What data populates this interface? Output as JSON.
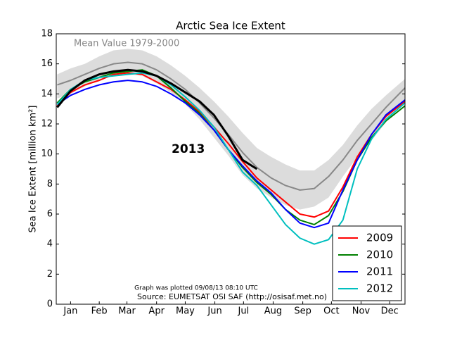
{
  "chart_data": {
    "type": "line",
    "title": "Arctic Sea Ice Extent",
    "y_label": "Sea Ice Extent [million km²]",
    "annotation_mean": "Mean Value 1979-2000",
    "footnote": "Graph was plotted 09/08/13 08:10 UTC",
    "source": "Source: EUMETSAT OSI SAF (http://osisaf.met.no)",
    "xlim": [
      0,
      365
    ],
    "xticks": [
      {
        "value": 15,
        "label": "Jan"
      },
      {
        "value": 45,
        "label": "Feb"
      },
      {
        "value": 74,
        "label": "Mar"
      },
      {
        "value": 105,
        "label": "Apr"
      },
      {
        "value": 135,
        "label": "May"
      },
      {
        "value": 166,
        "label": "Jun"
      },
      {
        "value": 196,
        "label": "Jul"
      },
      {
        "value": 227,
        "label": "Aug"
      },
      {
        "value": 258,
        "label": "Sep"
      },
      {
        "value": 288,
        "label": "Oct"
      },
      {
        "value": 319,
        "label": "Nov"
      },
      {
        "value": 349,
        "label": "Dec"
      }
    ],
    "ylim": [
      0,
      18
    ],
    "yticks": [
      0,
      2,
      4,
      6,
      8,
      10,
      12,
      14,
      16,
      18
    ],
    "legend": "lower right",
    "x": [
      1,
      15,
      30,
      45,
      60,
      75,
      90,
      105,
      120,
      135,
      150,
      165,
      180,
      195,
      210,
      225,
      240,
      255,
      270,
      285,
      300,
      315,
      330,
      345,
      365
    ],
    "range": {
      "color": "#dcdcdc",
      "high": [
        15.3,
        15.7,
        16.0,
        16.5,
        16.9,
        17.0,
        16.9,
        16.5,
        15.9,
        15.2,
        14.4,
        13.5,
        12.5,
        11.4,
        10.4,
        9.8,
        9.3,
        8.9,
        8.9,
        9.6,
        10.6,
        11.9,
        13.0,
        13.9,
        15.0
      ],
      "low": [
        13.7,
        14.0,
        14.5,
        14.9,
        15.2,
        15.3,
        15.2,
        14.7,
        14.1,
        13.3,
        12.3,
        11.1,
        9.9,
        8.6,
        7.7,
        7.1,
        6.6,
        6.3,
        6.5,
        7.1,
        8.5,
        9.8,
        10.9,
        12.1,
        13.6
      ]
    },
    "mean": {
      "color": "#888888",
      "values": [
        14.6,
        14.9,
        15.3,
        15.7,
        16.0,
        16.1,
        16.0,
        15.6,
        15.0,
        14.3,
        13.4,
        12.4,
        11.3,
        10.1,
        9.1,
        8.4,
        7.9,
        7.6,
        7.7,
        8.5,
        9.6,
        10.9,
        12.0,
        13.1,
        14.4
      ]
    },
    "series": [
      {
        "name": "2009",
        "color": "#ff0000",
        "values": [
          13.2,
          14.1,
          14.6,
          14.9,
          15.3,
          15.4,
          15.3,
          14.8,
          14.3,
          13.6,
          12.8,
          11.8,
          10.7,
          9.5,
          8.4,
          7.6,
          6.8,
          6.0,
          5.8,
          6.2,
          7.8,
          9.8,
          11.3,
          12.5,
          13.5
        ]
      },
      {
        "name": "2010",
        "color": "#008000",
        "values": [
          13.4,
          14.3,
          14.8,
          15.1,
          15.4,
          15.5,
          15.6,
          15.2,
          14.4,
          13.5,
          12.7,
          11.6,
          10.3,
          9.1,
          8.1,
          7.3,
          6.3,
          5.6,
          5.3,
          5.9,
          7.5,
          9.6,
          11.1,
          12.2,
          13.2
        ]
      },
      {
        "name": "2011",
        "color": "#0000ff",
        "values": [
          13.3,
          13.9,
          14.3,
          14.6,
          14.8,
          14.9,
          14.8,
          14.5,
          14.0,
          13.4,
          12.6,
          11.6,
          10.3,
          9.2,
          8.2,
          7.4,
          6.3,
          5.4,
          5.1,
          5.4,
          7.6,
          9.6,
          11.3,
          12.6,
          13.6
        ]
      },
      {
        "name": "2012",
        "color": "#00bfbf",
        "values": [
          13.3,
          14.3,
          14.9,
          15.1,
          15.2,
          15.3,
          15.4,
          15.2,
          14.6,
          13.8,
          12.9,
          11.8,
          10.3,
          8.8,
          7.9,
          6.6,
          5.3,
          4.4,
          4.0,
          4.3,
          5.6,
          9.0,
          11.0,
          12.3,
          13.4
        ]
      }
    ],
    "highlight": {
      "name": "2013",
      "color": "#000000",
      "values": [
        13.1,
        14.2,
        14.9,
        15.3,
        15.5,
        15.6,
        15.5,
        15.2,
        14.7,
        14.1,
        13.5,
        12.6,
        11.2,
        9.6,
        9.0,
        null,
        null,
        null,
        null,
        null,
        null,
        null,
        null,
        null,
        null
      ]
    }
  }
}
